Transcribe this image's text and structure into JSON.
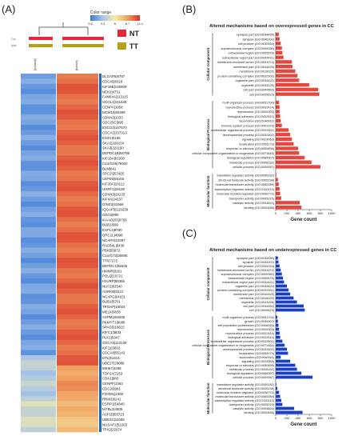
{
  "panel_labels": {
    "a": "(A)",
    "b": "(B)",
    "c": "(C)"
  },
  "heatmap": {
    "color_range_label": "Color range",
    "color_ticks": [
      "0.6",
      "3.3",
      "6",
      "8.7",
      "11.4"
    ],
    "row_labels": [
      "Cor",
      "type"
    ],
    "legend": [
      {
        "label": "NT",
        "color": "#e8253a"
      },
      {
        "label": "TT",
        "color": "#b5a017"
      }
    ],
    "columns": [
      "[normal]",
      "[tumor]"
    ],
    "genes": [
      "DLGAP5|9787",
      "CDC45|8318",
      "KIF18B|146909",
      "NEK2|4751",
      "FAM64A|113115",
      "SGOL1|151648",
      "CENPA|1058",
      "MCM10|55388",
      "CDKN3|1033",
      "CDC25C|995",
      "ESCO2|157570",
      "CDCA2|157313",
      "EXO1|9156",
      "SKA1|220134",
      "SKA3|221150",
      "DEPDC1B|55789",
      "KIF18A|81930",
      "C1orf135|79000",
      "BLM|641",
      "SPC25|57405",
      "CEP55|55165",
      "KIF20A|10112",
      "UHRF1|29128",
      "CDKN3|29133",
      "KIF4A|24137",
      "GINS2|51659",
      "IQGAP3|128239",
      "CDC6|990",
      "KIAA0101|9768",
      "BUB1|699",
      "ESPL1|9700",
      "ORC1L|4998",
      "NCAPH|23397",
      "RAD54L|8438",
      "PBK|55872",
      "C1orf172|26695",
      "TTK|7272",
      "DEPDC1|55635",
      "HMMR|3161",
      "POLQ|10721",
      "HJURP|55355",
      "NUF2|83540",
      "AURKB|9212",
      "NCAPG|64151",
      "BUB1B|701",
      "TROAP|10024",
      "MELK|9833",
      "ASPM|259266",
      "PKMYT1|9088",
      "SPAG5|10615",
      "KIFC1|3833",
      "PLK1|5347",
      "CDCA5|113130",
      "KIF11|3832",
      "CDCA8|55143",
      "DTL|51514",
      "UBE2T|29089",
      "MKI67|4288",
      "TOP2A|7153",
      "CDK1|983",
      "CENPF|1063",
      "CDC20|991",
      "FOXM1|2305",
      "RRM2|6241",
      "ESRP1|54845",
      "MYBL2|4605",
      "ASF1B|55723",
      "UBE2C|11065",
      "NUSAP1|51203",
      "TPX2|22974"
    ]
  },
  "chart_data": [
    {
      "type": "bar",
      "orientation": "horizontal",
      "title": "Altered mechanisms based on overexpressed genes in CC",
      "xlabel": "Gene count",
      "xlim": [
        0,
        1000
      ],
      "xticks": [
        0,
        200,
        400,
        600,
        800,
        1000
      ],
      "groups": [
        {
          "name": "Cellular component",
          "categories": [
            "synapse part (GO:0044456)",
            "synapse (GO:0045202)",
            "cell junction (GO:0030054)",
            "supramolecular complex (GO:0099080)",
            "extracellular region (GO:0005576)",
            "extracellular region part (GO:0044421)",
            "membrane-enclosed lumen (GO:0031974)",
            "membrane part (GO:0044425)",
            "membrane (GO:0016020)",
            "protein-containing complex (GO:0032991)",
            "organelle part (GO:0044422)",
            "organelle (GO:0043226)",
            "cell part (GO:0044464)",
            "cell (GO:0005623)"
          ],
          "values": [
            55,
            70,
            90,
            110,
            120,
            140,
            290,
            300,
            350,
            390,
            420,
            600,
            760,
            780
          ]
        },
        {
          "name": "Biological Process",
          "categories": [
            "multi-organism process (GO:0051704)",
            "reproductive process (GO:0022414)",
            "reproduction (GO:0000003)",
            "biological adhesion (GO:0022610)",
            "locomotion (GO:0040011)",
            "immune system process (GO:0002376)",
            "multicellular organismal process (GO:0032501)",
            "developmental process (GO:0032502)",
            "signaling (GO:0023052)",
            "localization (GO:0051179)",
            "response to stimulus (GO:0050896)",
            "cellular component organization or biogenesis (GO:0071840)",
            "biological regulation (GO:0065007)",
            "metabolic process (GO:0008152)",
            "cellular process (GO:0009987)"
          ],
          "values": [
            60,
            70,
            70,
            80,
            90,
            110,
            230,
            260,
            290,
            320,
            400,
            420,
            520,
            640,
            800
          ]
        },
        {
          "name": "Molecular function",
          "categories": [
            "translation regulator activity (GO:0045182)",
            "structural molecule activity (GO:0005198)",
            "molecular transducer activity (GO:0060089)",
            "transcription regulator activity (GO:0140110)",
            "molecular function regulator (GO:0098772)",
            "transporter activity (GO:0005215)",
            "catalytic activity (GO:0003824)",
            "binding (GO:0005488)"
          ],
          "values": [
            10,
            40,
            55,
            70,
            80,
            100,
            430,
            460
          ]
        }
      ],
      "color": "#e8453c",
      "grid": false
    },
    {
      "type": "bar",
      "orientation": "horizontal",
      "title": "Altered mechanisms based on underexpressed genes in CC",
      "xlabel": "Gene count",
      "xlim": [
        0,
        1000
      ],
      "xticks": [
        0,
        200,
        400,
        600,
        800,
        1000
      ],
      "groups": [
        {
          "name": "Cellular component",
          "categories": [
            "synapse part (GO:0044456)",
            "synapse (GO:0045202)",
            "cell junction (GO:0030054)",
            "membrane-enclosed lumen (GO:0031974)",
            "supramolecular complex (GO:0099080)",
            "extracellular region (GO:0005576)",
            "extracellular region part (GO:0044421)",
            "organelle part (GO:0044422)",
            "protein-containing complex (GO:0032991)",
            "membrane part (GO:0044425)",
            "membrane (GO:0016020)",
            "organelle (GO:0043226)",
            "cell part (GO:0044464)",
            "cell (GO:0005623)"
          ],
          "values": [
            40,
            50,
            70,
            90,
            110,
            130,
            150,
            200,
            230,
            260,
            320,
            380,
            500,
            520
          ]
        },
        {
          "name": "Biological Processes",
          "categories": [
            "multi-organism process (GO:0051704)",
            "growth (GO:0040007)",
            "cell population proliferation (GO:0008283)",
            "reproduction (GO:0000003)",
            "reproductive process (GO:0022414)",
            "biological adhesion (GO:0022610)",
            "multicellular organismal process (GO:0032501)",
            "cellular component organization or biogenesis (GO:0071840)",
            "developmental process (GO:0032502)",
            "localization (GO:0051179)",
            "locomotion (GO:0040011)",
            "signaling (GO:0023052)",
            "response to stimulus (GO:0050896)",
            "metabolic process (GO:0008152)",
            "biological regulation (GO:0065007)",
            "cellular process (GO:0009987)"
          ],
          "values": [
            30,
            40,
            50,
            60,
            70,
            80,
            120,
            160,
            200,
            220,
            90,
            260,
            350,
            380,
            460,
            660
          ]
        },
        {
          "name": "Molecular function",
          "categories": [
            "translation regulator activity (GO:0045182)",
            "structural molecule activity (GO:0005198)",
            "molecular function regulator (GO:0098772)",
            "molecular transducer activity (GO:0060089)",
            "transcription regulator activity (GO:0140110)",
            "transporter activity (GO:0005215)",
            "catalytic activity (GO:0003824)",
            "binding (GO:0005488)"
          ],
          "values": [
            10,
            30,
            60,
            80,
            100,
            120,
            330,
            480
          ]
        }
      ],
      "color": "#1a3fc4",
      "grid": false
    }
  ]
}
